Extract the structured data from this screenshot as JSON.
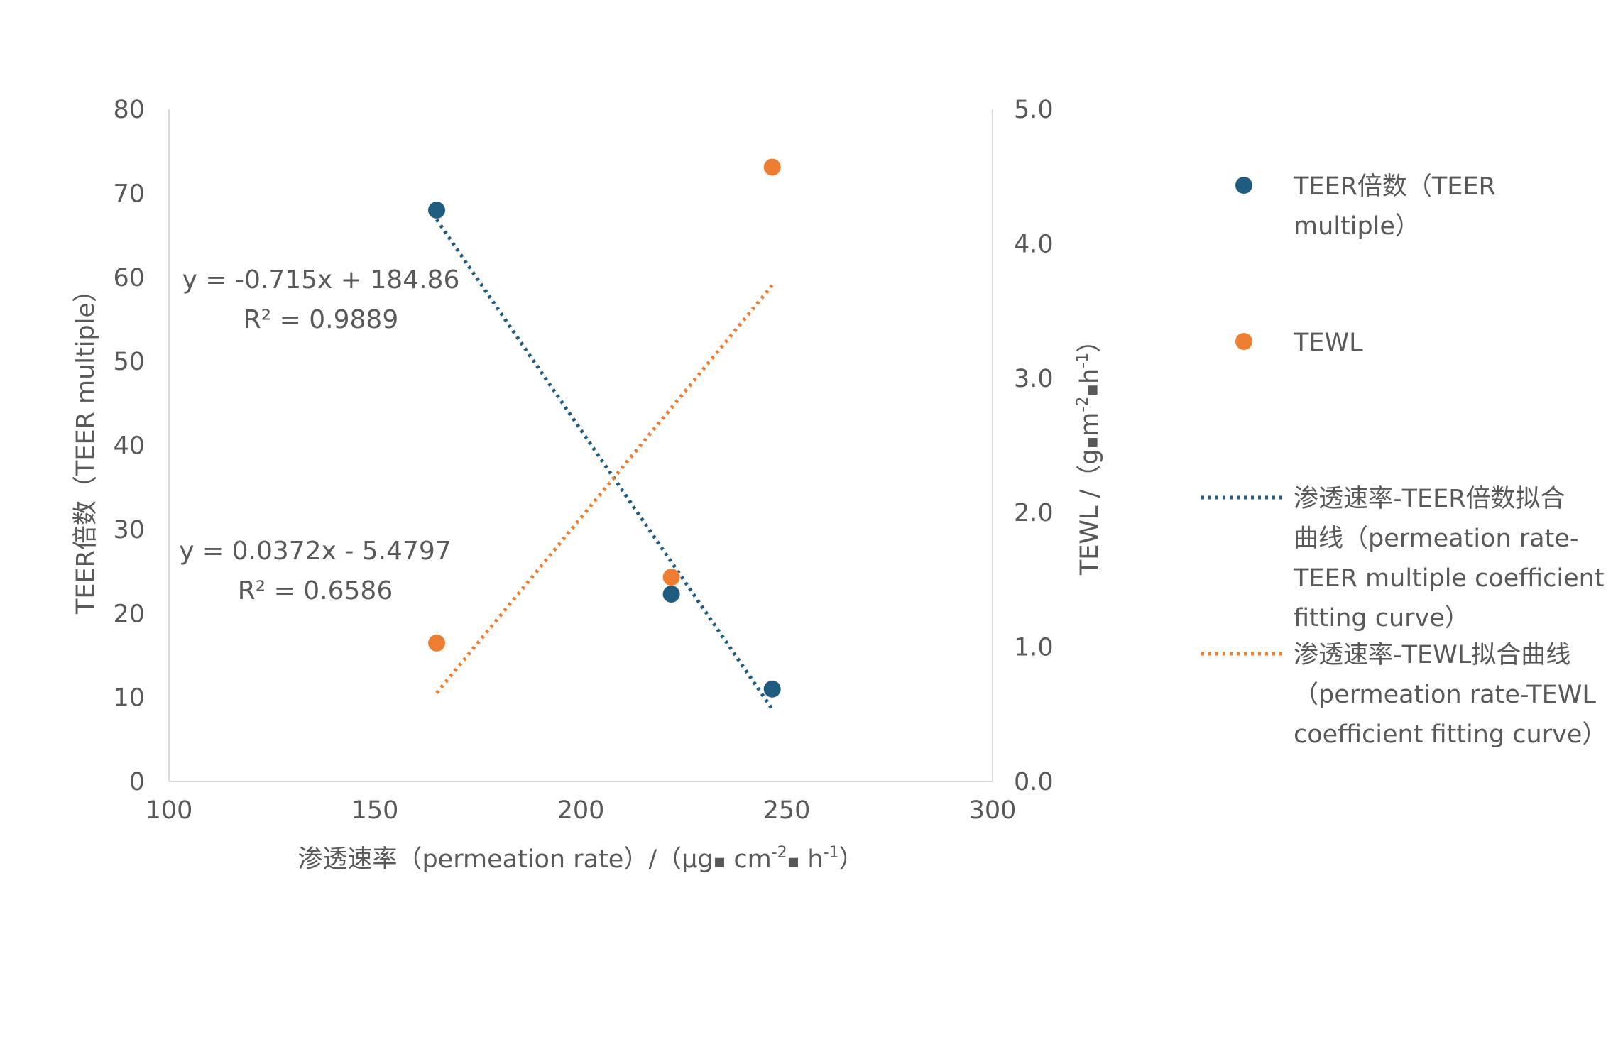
{
  "chart_data": {
    "type": "scatter",
    "x_axis": {
      "title_prefix": "渗透速率（permeation rate）/（μg",
      "title_unit_1": " cm",
      "title_sup_1": "-2",
      "title_unit_2": " h",
      "title_sup_2": "-1",
      "title_suffix": "）",
      "range": [
        100,
        300
      ],
      "ticks": [
        100,
        150,
        200,
        250,
        300
      ],
      "tick_labels": [
        "100",
        "150",
        "200",
        "250",
        "300"
      ]
    },
    "y_axis_left": {
      "title": "TEER倍数（TEER multiple）",
      "range": [
        0,
        80
      ],
      "ticks": [
        0,
        10,
        20,
        30,
        40,
        50,
        60,
        70,
        80
      ],
      "tick_labels": [
        "0",
        "10",
        "20",
        "30",
        "40",
        "50",
        "60",
        "70",
        "80"
      ]
    },
    "y_axis_right": {
      "title_prefix": "TEWL /（g",
      "title_unit_1": "m",
      "title_sup_1": "-2",
      "title_unit_2": "h",
      "title_sup_2": "-1",
      "title_suffix": "）",
      "range": [
        0,
        5
      ],
      "ticks": [
        0,
        1,
        2,
        3,
        4,
        5
      ],
      "tick_labels": [
        "0.0",
        "1.0",
        "2.0",
        "3.0",
        "4.0",
        "5.0"
      ]
    },
    "series": [
      {
        "name": "TEER倍数（TEER multiple）",
        "axis": "left",
        "color": "#1f5c7f",
        "points": [
          [
            165,
            68
          ],
          [
            222,
            22.3
          ],
          [
            246.5,
            11
          ]
        ]
      },
      {
        "name": "TEWL",
        "axis": "right",
        "color": "#ed7d31",
        "points": [
          [
            165,
            1.03
          ],
          [
            222,
            1.52
          ],
          [
            246.5,
            4.57
          ]
        ]
      }
    ],
    "trendlines": [
      {
        "name": "渗透速率-TEER倍数拟合曲线（permeation rate-TEER multiple coefficient fitting curve）",
        "axis": "left",
        "color": "#1f5c7f",
        "slope": -0.715,
        "intercept": 184.86,
        "x_range": [
          165,
          246.5
        ],
        "equation": "y = -0.715x + 184.86",
        "r_squared": "R² = 0.9889"
      },
      {
        "name": "渗透速率-TEWL拟合曲线（permeation rate-TEWL coefficient fitting curve）",
        "axis": "right",
        "color": "#ed7d31",
        "slope": 0.0372,
        "intercept": -5.4797,
        "x_range": [
          165,
          246.5
        ],
        "equation": "y = 0.0372x - 5.4797",
        "r_squared": "R² = 0.6586"
      }
    ],
    "legend": {
      "placement": "right",
      "entries": [
        {
          "lines": [
            "TEER倍数（TEER",
            "multiple）"
          ],
          "marker": "dot",
          "color": "#1f5c7f"
        },
        {
          "lines": [
            "TEWL"
          ],
          "marker": "dot",
          "color": "#ed7d31"
        },
        {
          "lines": [
            "渗透速率-TEER倍数拟合",
            "曲线（permeation rate-",
            "TEER multiple coefficient",
            "fitting curve）"
          ],
          "marker": "dotted-line",
          "color": "#1f5c7f"
        },
        {
          "lines": [
            "渗透速率-TEWL拟合曲线",
            "（permeation rate-TEWL",
            "coefficient fitting curve）"
          ],
          "marker": "dotted-line",
          "color": "#ed7d31"
        }
      ]
    },
    "grid": false
  }
}
